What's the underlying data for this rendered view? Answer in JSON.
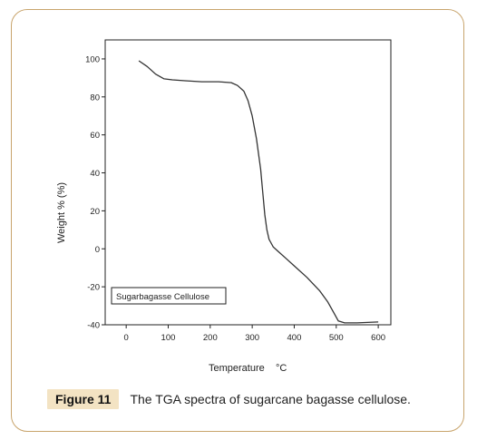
{
  "chart_data": {
    "type": "line",
    "xlabel": "Temperature",
    "xlabel_unit": "°C",
    "ylabel": "Weight % (%)",
    "xlim": [
      -50,
      630
    ],
    "ylim": [
      -40,
      110
    ],
    "xticks": [
      "0",
      "100",
      "200",
      "300",
      "400",
      "500",
      "600"
    ],
    "yticks": [
      "100",
      "80",
      "60",
      "40",
      "20",
      "0",
      "-20",
      "-40"
    ],
    "xtick_values": [
      0,
      100,
      200,
      300,
      400,
      500,
      600
    ],
    "ytick_values": [
      100,
      80,
      60,
      40,
      20,
      0,
      -20,
      -40
    ],
    "legend_text": "Sugarbagasse Cellulose",
    "legend_position": "bottom-left",
    "grid": false,
    "series": [
      {
        "name": "Sugarbagasse Cellulose",
        "color": "#333333",
        "x": [
          30,
          50,
          70,
          90,
          110,
          140,
          180,
          220,
          250,
          265,
          280,
          290,
          300,
          310,
          320,
          325,
          330,
          335,
          340,
          345,
          350,
          360,
          380,
          400,
          430,
          460,
          480,
          495,
          505,
          520,
          550,
          600
        ],
        "y": [
          99,
          96,
          92,
          89.5,
          89,
          88.5,
          88,
          88,
          87.5,
          86,
          83,
          78,
          70,
          58,
          42,
          30,
          18,
          10,
          5,
          3,
          1,
          -1,
          -5,
          -9,
          -15,
          -22,
          -28,
          -34,
          -38,
          -39,
          -39,
          -38.5
        ]
      }
    ]
  },
  "caption": {
    "label": "Figure 11",
    "text": "The TGA spectra of sugarcane bagasse cellulose."
  }
}
